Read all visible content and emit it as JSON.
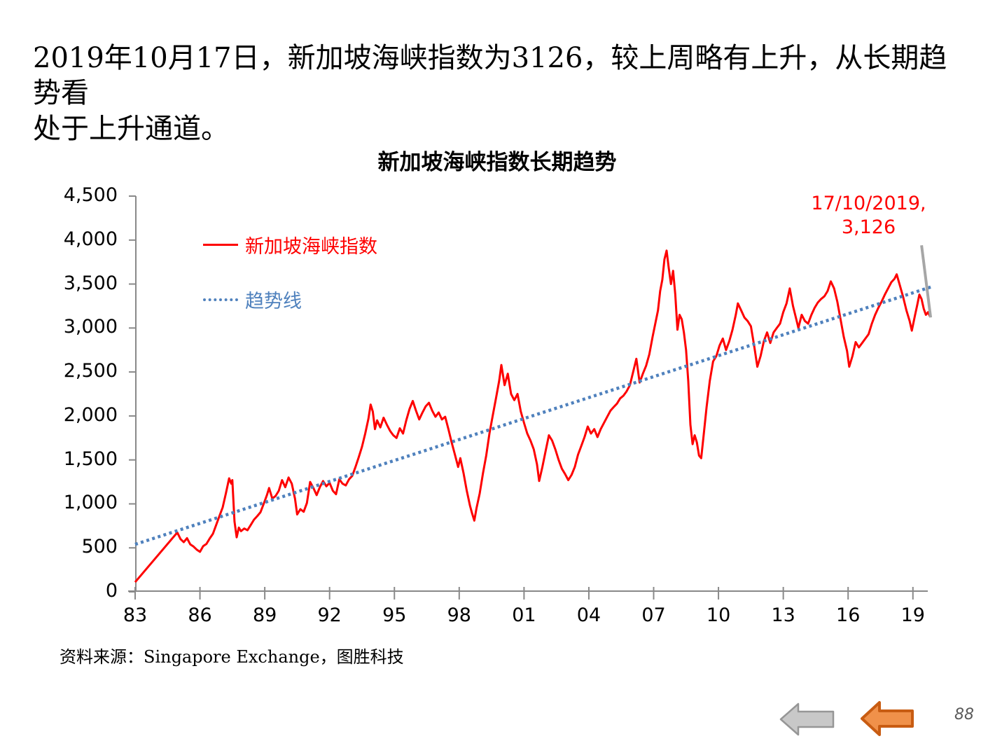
{
  "slide": {
    "header_line1": "2019年10月17日，新加坡海峡指数为3126，较上周略有上升，从长期趋势看",
    "header_line2": "处于上升通道。",
    "source": "资料来源：Singapore Exchange，图胜科技",
    "page_number": "88"
  },
  "chart_data": {
    "type": "line",
    "title": "新加坡海峡指数长期趋势",
    "xlabel": "",
    "ylabel": "",
    "xlim": [
      1983,
      2019.85
    ],
    "ylim": [
      0,
      4500
    ],
    "grid": false,
    "legend_position": "inside-top-left",
    "x_ticks": [
      1983,
      1986,
      1989,
      1992,
      1995,
      1998,
      2001,
      2004,
      2007,
      2010,
      2013,
      2016,
      2019
    ],
    "x_tick_labels": [
      "83",
      "86",
      "89",
      "92",
      "95",
      "98",
      "01",
      "04",
      "07",
      "10",
      "13",
      "16",
      "19"
    ],
    "y_ticks": [
      0,
      500,
      1000,
      1500,
      2000,
      2500,
      3000,
      3500,
      4000,
      4500
    ],
    "y_tick_labels": [
      "0",
      "500",
      "1,000",
      "1,500",
      "2,000",
      "2,500",
      "3,000",
      "3,500",
      "4,000",
      "4,500"
    ],
    "annotation": {
      "line1": "17/10/2019,",
      "line2": "3,126",
      "color": "#fe0000",
      "leader_line": {
        "from_year": 2019.4,
        "from_value": 3940,
        "to_year": 2019.82,
        "to_value": 3120,
        "color": "#a6a6a6"
      }
    },
    "series": [
      {
        "name": "新加坡海峡指数",
        "color": "#fe0000",
        "style": "solid",
        "points": [
          [
            1983.0,
            110
          ],
          [
            1984.95,
            675
          ],
          [
            1985.1,
            600
          ],
          [
            1985.25,
            565
          ],
          [
            1985.4,
            610
          ],
          [
            1985.55,
            540
          ],
          [
            1985.7,
            515
          ],
          [
            1985.85,
            480
          ],
          [
            1986.0,
            455
          ],
          [
            1986.15,
            520
          ],
          [
            1986.3,
            545
          ],
          [
            1986.45,
            605
          ],
          [
            1986.6,
            660
          ],
          [
            1986.75,
            760
          ],
          [
            1986.9,
            860
          ],
          [
            1987.05,
            960
          ],
          [
            1987.2,
            1120
          ],
          [
            1987.35,
            1290
          ],
          [
            1987.45,
            1230
          ],
          [
            1987.5,
            1270
          ],
          [
            1987.6,
            800
          ],
          [
            1987.7,
            620
          ],
          [
            1987.8,
            730
          ],
          [
            1987.9,
            690
          ],
          [
            1988.05,
            720
          ],
          [
            1988.2,
            700
          ],
          [
            1988.35,
            760
          ],
          [
            1988.5,
            820
          ],
          [
            1988.65,
            860
          ],
          [
            1988.8,
            905
          ],
          [
            1988.95,
            1000
          ],
          [
            1989.1,
            1100
          ],
          [
            1989.2,
            1180
          ],
          [
            1989.35,
            1060
          ],
          [
            1989.5,
            1090
          ],
          [
            1989.65,
            1150
          ],
          [
            1989.8,
            1270
          ],
          [
            1989.95,
            1190
          ],
          [
            1990.1,
            1300
          ],
          [
            1990.25,
            1230
          ],
          [
            1990.4,
            1060
          ],
          [
            1990.5,
            880
          ],
          [
            1990.65,
            940
          ],
          [
            1990.8,
            910
          ],
          [
            1990.95,
            1010
          ],
          [
            1991.1,
            1250
          ],
          [
            1991.25,
            1180
          ],
          [
            1991.4,
            1100
          ],
          [
            1991.55,
            1190
          ],
          [
            1991.7,
            1260
          ],
          [
            1991.85,
            1200
          ],
          [
            1992.0,
            1240
          ],
          [
            1992.15,
            1150
          ],
          [
            1992.3,
            1110
          ],
          [
            1992.45,
            1280
          ],
          [
            1992.6,
            1230
          ],
          [
            1992.75,
            1210
          ],
          [
            1992.9,
            1280
          ],
          [
            1993.05,
            1320
          ],
          [
            1993.2,
            1420
          ],
          [
            1993.35,
            1530
          ],
          [
            1993.5,
            1650
          ],
          [
            1993.65,
            1800
          ],
          [
            1993.8,
            1970
          ],
          [
            1993.9,
            2130
          ],
          [
            1994.0,
            2050
          ],
          [
            1994.1,
            1850
          ],
          [
            1994.2,
            1950
          ],
          [
            1994.35,
            1870
          ],
          [
            1994.5,
            1980
          ],
          [
            1994.65,
            1900
          ],
          [
            1994.8,
            1830
          ],
          [
            1994.95,
            1780
          ],
          [
            1995.1,
            1750
          ],
          [
            1995.25,
            1860
          ],
          [
            1995.4,
            1800
          ],
          [
            1995.55,
            1950
          ],
          [
            1995.7,
            2080
          ],
          [
            1995.85,
            2170
          ],
          [
            1996.0,
            2060
          ],
          [
            1996.15,
            1960
          ],
          [
            1996.3,
            2040
          ],
          [
            1996.45,
            2110
          ],
          [
            1996.6,
            2150
          ],
          [
            1996.75,
            2060
          ],
          [
            1996.9,
            1990
          ],
          [
            1997.05,
            2040
          ],
          [
            1997.2,
            1960
          ],
          [
            1997.35,
            1990
          ],
          [
            1997.5,
            1850
          ],
          [
            1997.65,
            1700
          ],
          [
            1997.8,
            1560
          ],
          [
            1997.95,
            1420
          ],
          [
            1998.05,
            1520
          ],
          [
            1998.2,
            1350
          ],
          [
            1998.35,
            1150
          ],
          [
            1998.5,
            980
          ],
          [
            1998.6,
            890
          ],
          [
            1998.7,
            810
          ],
          [
            1998.8,
            950
          ],
          [
            1998.95,
            1120
          ],
          [
            1999.1,
            1350
          ],
          [
            1999.25,
            1550
          ],
          [
            1999.4,
            1800
          ],
          [
            1999.55,
            2000
          ],
          [
            1999.7,
            2200
          ],
          [
            1999.85,
            2400
          ],
          [
            1999.95,
            2580
          ],
          [
            2000.1,
            2350
          ],
          [
            2000.25,
            2480
          ],
          [
            2000.4,
            2250
          ],
          [
            2000.55,
            2180
          ],
          [
            2000.7,
            2250
          ],
          [
            2000.85,
            2050
          ],
          [
            2001.0,
            1920
          ],
          [
            2001.15,
            1800
          ],
          [
            2001.3,
            1720
          ],
          [
            2001.45,
            1620
          ],
          [
            2001.6,
            1450
          ],
          [
            2001.7,
            1260
          ],
          [
            2001.85,
            1420
          ],
          [
            2002.0,
            1600
          ],
          [
            2002.15,
            1780
          ],
          [
            2002.3,
            1720
          ],
          [
            2002.45,
            1620
          ],
          [
            2002.6,
            1500
          ],
          [
            2002.75,
            1400
          ],
          [
            2002.9,
            1340
          ],
          [
            2003.05,
            1270
          ],
          [
            2003.2,
            1330
          ],
          [
            2003.35,
            1420
          ],
          [
            2003.5,
            1560
          ],
          [
            2003.65,
            1660
          ],
          [
            2003.8,
            1760
          ],
          [
            2003.95,
            1880
          ],
          [
            2004.1,
            1800
          ],
          [
            2004.25,
            1850
          ],
          [
            2004.4,
            1760
          ],
          [
            2004.55,
            1850
          ],
          [
            2004.7,
            1920
          ],
          [
            2004.85,
            1990
          ],
          [
            2005.0,
            2060
          ],
          [
            2005.15,
            2100
          ],
          [
            2005.3,
            2140
          ],
          [
            2005.45,
            2200
          ],
          [
            2005.6,
            2230
          ],
          [
            2005.75,
            2280
          ],
          [
            2005.9,
            2350
          ],
          [
            2006.05,
            2500
          ],
          [
            2006.2,
            2650
          ],
          [
            2006.35,
            2380
          ],
          [
            2006.5,
            2480
          ],
          [
            2006.65,
            2570
          ],
          [
            2006.8,
            2700
          ],
          [
            2006.95,
            2900
          ],
          [
            2007.1,
            3080
          ],
          [
            2007.2,
            3200
          ],
          [
            2007.3,
            3420
          ],
          [
            2007.4,
            3550
          ],
          [
            2007.5,
            3780
          ],
          [
            2007.6,
            3880
          ],
          [
            2007.7,
            3680
          ],
          [
            2007.8,
            3500
          ],
          [
            2007.9,
            3650
          ],
          [
            2008.0,
            3380
          ],
          [
            2008.1,
            2980
          ],
          [
            2008.2,
            3150
          ],
          [
            2008.3,
            3100
          ],
          [
            2008.4,
            2950
          ],
          [
            2008.5,
            2750
          ],
          [
            2008.6,
            2400
          ],
          [
            2008.7,
            1900
          ],
          [
            2008.8,
            1680
          ],
          [
            2008.9,
            1780
          ],
          [
            2009.0,
            1700
          ],
          [
            2009.1,
            1550
          ],
          [
            2009.2,
            1520
          ],
          [
            2009.3,
            1750
          ],
          [
            2009.45,
            2100
          ],
          [
            2009.6,
            2400
          ],
          [
            2009.75,
            2620
          ],
          [
            2009.9,
            2680
          ],
          [
            2010.05,
            2800
          ],
          [
            2010.2,
            2880
          ],
          [
            2010.35,
            2750
          ],
          [
            2010.5,
            2850
          ],
          [
            2010.65,
            2980
          ],
          [
            2010.8,
            3150
          ],
          [
            2010.9,
            3280
          ],
          [
            2011.05,
            3200
          ],
          [
            2011.2,
            3120
          ],
          [
            2011.35,
            3080
          ],
          [
            2011.5,
            3020
          ],
          [
            2011.65,
            2800
          ],
          [
            2011.8,
            2560
          ],
          [
            2011.95,
            2680
          ],
          [
            2012.1,
            2850
          ],
          [
            2012.25,
            2950
          ],
          [
            2012.4,
            2830
          ],
          [
            2012.55,
            2950
          ],
          [
            2012.7,
            3000
          ],
          [
            2012.85,
            3050
          ],
          [
            2013.0,
            3180
          ],
          [
            2013.15,
            3280
          ],
          [
            2013.3,
            3450
          ],
          [
            2013.45,
            3250
          ],
          [
            2013.6,
            3100
          ],
          [
            2013.7,
            3000
          ],
          [
            2013.85,
            3150
          ],
          [
            2014.0,
            3080
          ],
          [
            2014.15,
            3050
          ],
          [
            2014.3,
            3150
          ],
          [
            2014.45,
            3230
          ],
          [
            2014.6,
            3290
          ],
          [
            2014.75,
            3330
          ],
          [
            2014.9,
            3360
          ],
          [
            2015.05,
            3420
          ],
          [
            2015.2,
            3530
          ],
          [
            2015.35,
            3450
          ],
          [
            2015.5,
            3300
          ],
          [
            2015.65,
            3100
          ],
          [
            2015.8,
            2900
          ],
          [
            2015.95,
            2740
          ],
          [
            2016.05,
            2560
          ],
          [
            2016.2,
            2680
          ],
          [
            2016.35,
            2840
          ],
          [
            2016.5,
            2780
          ],
          [
            2016.65,
            2830
          ],
          [
            2016.8,
            2880
          ],
          [
            2016.95,
            2930
          ],
          [
            2017.1,
            3050
          ],
          [
            2017.25,
            3150
          ],
          [
            2017.4,
            3230
          ],
          [
            2017.55,
            3300
          ],
          [
            2017.7,
            3380
          ],
          [
            2017.85,
            3450
          ],
          [
            2018.0,
            3520
          ],
          [
            2018.15,
            3560
          ],
          [
            2018.25,
            3610
          ],
          [
            2018.4,
            3480
          ],
          [
            2018.55,
            3350
          ],
          [
            2018.7,
            3200
          ],
          [
            2018.85,
            3080
          ],
          [
            2018.95,
            2970
          ],
          [
            2019.1,
            3150
          ],
          [
            2019.2,
            3260
          ],
          [
            2019.3,
            3380
          ],
          [
            2019.4,
            3330
          ],
          [
            2019.5,
            3220
          ],
          [
            2019.6,
            3150
          ],
          [
            2019.7,
            3180
          ],
          [
            2019.8,
            3126
          ]
        ]
      },
      {
        "name": "趋势线",
        "color": "#4f81bd",
        "style": "dotted",
        "points": [
          [
            1983.0,
            540
          ],
          [
            2019.85,
            3468
          ]
        ]
      }
    ],
    "legend": [
      {
        "label": "新加坡海峡指数",
        "color": "#fe0000",
        "style": "solid"
      },
      {
        "label": "趋势线",
        "color": "#4f81bd",
        "style": "dotted"
      }
    ],
    "axis_color": "#898989",
    "last_point": {
      "date": "17/10/2019",
      "value": 3126
    }
  },
  "nav": {
    "back_gray": {
      "fill": "#c8c8c8",
      "stroke": "#969696"
    },
    "back_orange": {
      "fill": "#f0914a",
      "stroke": "#c85c12"
    }
  }
}
